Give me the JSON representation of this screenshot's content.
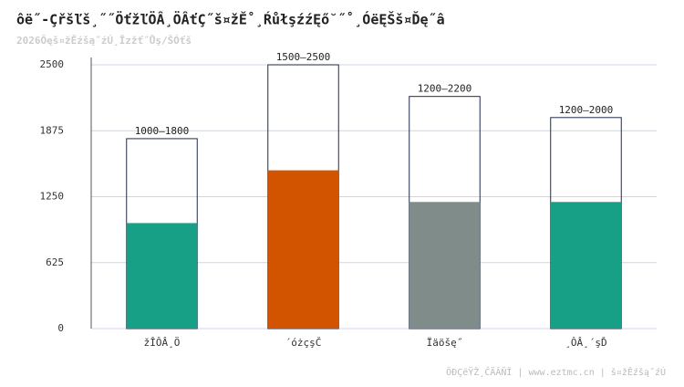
{
  "chart_data": {
    "type": "bar",
    "title": "ôë˝-Çřšľš¸˝˝ÖťžľÖÂ¸ÖÂťÇ˝š¤žĚ˚¸ŔůłşźźĘő˘˝˚¸ÓëĘŠš¤Ďę˝â",
    "subtitle": "2026Ôęš¤žĚźšą˝źÚ¸Îzžť˝Ůş/ŠÓťš",
    "footer": "ÖĐÇëŸŽ¸ČÄÂÑÎ | www.eztmc.cn | š¤žĚźšą˝źÚ",
    "categories": [
      "žÎÔÂ¸Ö",
      "´óżçşČ",
      "Ïäöšę˝",
      "¸ÔÂ¸´şĎ"
    ],
    "series": [
      {
        "values": [
          1000,
          1500,
          1200,
          1200
        ],
        "colors": [
          "#17a085",
          "#d35400",
          "#7f8c8a",
          "#17a085"
        ]
      },
      {
        "values": [
          1800,
          2500,
          2200,
          2000
        ],
        "color": "#1e2a48"
      }
    ],
    "range_labels": [
      "1000–1800",
      "1500–2500",
      "1200–2200",
      "1200–2000"
    ],
    "ylim": [
      0,
      2500
    ],
    "yticks": [
      0,
      625,
      1250,
      1875,
      2500
    ],
    "grid": true
  }
}
